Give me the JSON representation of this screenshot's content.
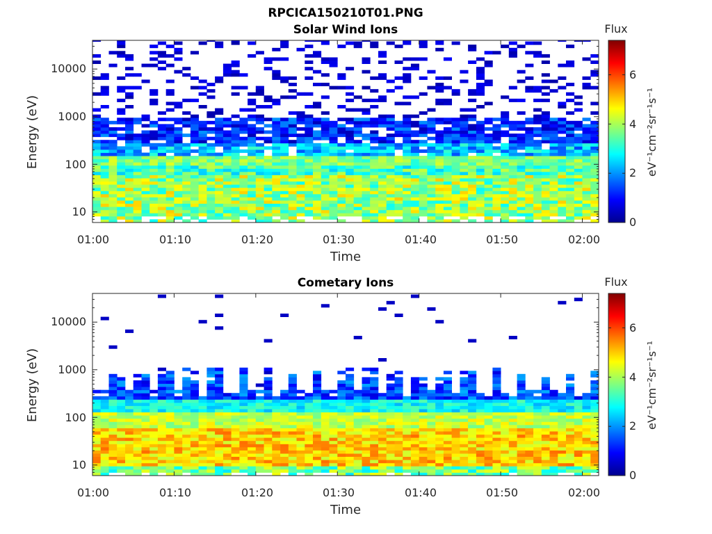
{
  "figure_title": "RPCICA150210T01.PNG",
  "colormap": "jet",
  "chart_data": [
    {
      "type": "heatmap",
      "title": "Solar Wind Ions",
      "xlabel": "Time",
      "ylabel": "Energy (eV)",
      "yscale": "log",
      "ylim": [
        6,
        40000
      ],
      "xlim": [
        "01:00",
        "02:02"
      ],
      "x_tick_labels": [
        "01:00",
        "01:10",
        "01:20",
        "01:30",
        "01:40",
        "01:50",
        "02:00"
      ],
      "y_tick_labels": [
        "10",
        "100",
        "1000",
        "10000"
      ],
      "colorbar": {
        "title": "Flux",
        "units": "eV⁻¹cm⁻²sr⁻¹s⁻¹",
        "range": [
          0,
          7.4
        ],
        "tick_labels": [
          "0",
          "2",
          "4",
          "6"
        ]
      },
      "grid": false,
      "sweep_times": [
        "01:00",
        "01:03",
        "01:06",
        "01:09",
        "01:12",
        "01:16",
        "01:19",
        "01:22",
        "01:25",
        "01:28",
        "01:32",
        "01:35",
        "01:38",
        "01:41",
        "01:44",
        "01:47",
        "01:51",
        "01:54",
        "01:57",
        "02:00"
      ],
      "summary": "Solar wind ion flux concentrated near 80-130 eV with broad low-energy emission 10-60 eV; sparse high-energy counts up to ~40000 eV."
    },
    {
      "type": "heatmap",
      "title": "Cometary Ions",
      "xlabel": "Time",
      "ylabel": "Energy (eV)",
      "yscale": "log",
      "ylim": [
        6,
        40000
      ],
      "xlim": [
        "01:00",
        "02:02"
      ],
      "x_tick_labels": [
        "01:00",
        "01:10",
        "01:20",
        "01:30",
        "01:40",
        "01:50",
        "02:00"
      ],
      "y_tick_labels": [
        "10",
        "100",
        "1000",
        "10000"
      ],
      "colorbar": {
        "title": "Flux",
        "units": "eV⁻¹cm⁻²sr⁻¹s⁻¹",
        "range": [
          0,
          7.4
        ],
        "tick_labels": [
          "0",
          "2",
          "4",
          "6"
        ]
      },
      "grid": false,
      "sweep_times": [
        "01:00",
        "01:03",
        "01:06",
        "01:09",
        "01:12",
        "01:16",
        "01:19",
        "01:22",
        "01:25",
        "01:28",
        "01:32",
        "01:35",
        "01:38",
        "01:41",
        "01:44",
        "01:47",
        "01:51",
        "01:54",
        "01:57",
        "02:00"
      ],
      "summary": "Cometary ion flux strongest (yellow-orange, ~4.5-5.5) between 10 and 60 eV, decreasing to blue above ~300 eV with periodic extensions to ~1000 eV."
    }
  ]
}
